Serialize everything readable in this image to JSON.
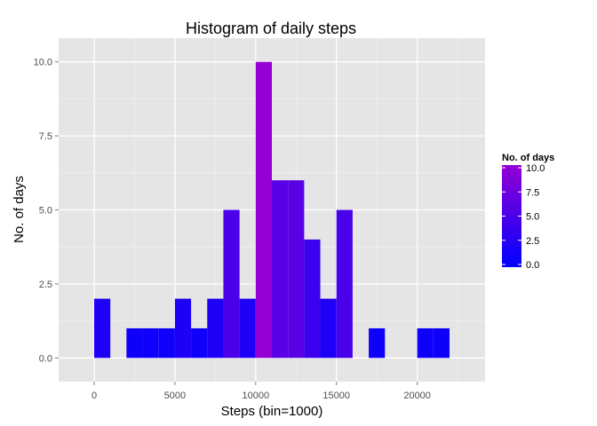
{
  "chart_data": {
    "type": "bar",
    "title": "Histogram of daily steps",
    "xlabel": "Steps (bin=1000)",
    "ylabel": "No. of days",
    "xlim": [
      -2200,
      24200
    ],
    "ylim": [
      -0.8,
      10.8
    ],
    "xticks": [
      0,
      5000,
      10000,
      15000,
      20000
    ],
    "xtick_labels": [
      "0",
      "5000",
      "10000",
      "15000",
      "20000"
    ],
    "yticks": [
      0,
      2.5,
      5,
      7.5,
      10
    ],
    "ytick_labels": [
      "0.0",
      "2.5",
      "5.0",
      "7.5",
      "10.0"
    ],
    "bin_width": 1000,
    "bins": [
      {
        "start": 0,
        "end": 1000,
        "count": 2
      },
      {
        "start": 1000,
        "end": 2000,
        "count": 0
      },
      {
        "start": 2000,
        "end": 3000,
        "count": 1
      },
      {
        "start": 3000,
        "end": 4000,
        "count": 1
      },
      {
        "start": 4000,
        "end": 5000,
        "count": 1
      },
      {
        "start": 5000,
        "end": 6000,
        "count": 2
      },
      {
        "start": 6000,
        "end": 7000,
        "count": 1
      },
      {
        "start": 7000,
        "end": 8000,
        "count": 2
      },
      {
        "start": 8000,
        "end": 9000,
        "count": 5
      },
      {
        "start": 9000,
        "end": 10000,
        "count": 2
      },
      {
        "start": 10000,
        "end": 11000,
        "count": 10
      },
      {
        "start": 11000,
        "end": 12000,
        "count": 6
      },
      {
        "start": 12000,
        "end": 13000,
        "count": 6
      },
      {
        "start": 13000,
        "end": 14000,
        "count": 4
      },
      {
        "start": 14000,
        "end": 15000,
        "count": 2
      },
      {
        "start": 15000,
        "end": 16000,
        "count": 5
      },
      {
        "start": 16000,
        "end": 17000,
        "count": 0
      },
      {
        "start": 17000,
        "end": 18000,
        "count": 1
      },
      {
        "start": 18000,
        "end": 19000,
        "count": 0
      },
      {
        "start": 19000,
        "end": 20000,
        "count": 0
      },
      {
        "start": 20000,
        "end": 21000,
        "count": 1
      },
      {
        "start": 21000,
        "end": 22000,
        "count": 1
      }
    ],
    "grid": true,
    "fill_scale": {
      "low_color": "#0000ff",
      "high_color": "#9400d3",
      "min": 0,
      "max": 10
    },
    "legend": {
      "title": "No. of days",
      "placement": "right",
      "breaks": [
        10,
        7.5,
        5,
        2.5,
        0
      ],
      "labels": [
        "10.0",
        "7.5",
        "5.0",
        "2.5",
        "0.0"
      ]
    }
  },
  "colors": {
    "panel_background": "#e5e5e5",
    "grid_major": "#ffffff",
    "grid_minor": "#f2f2f2",
    "tick_text": "#4d4d4d"
  }
}
